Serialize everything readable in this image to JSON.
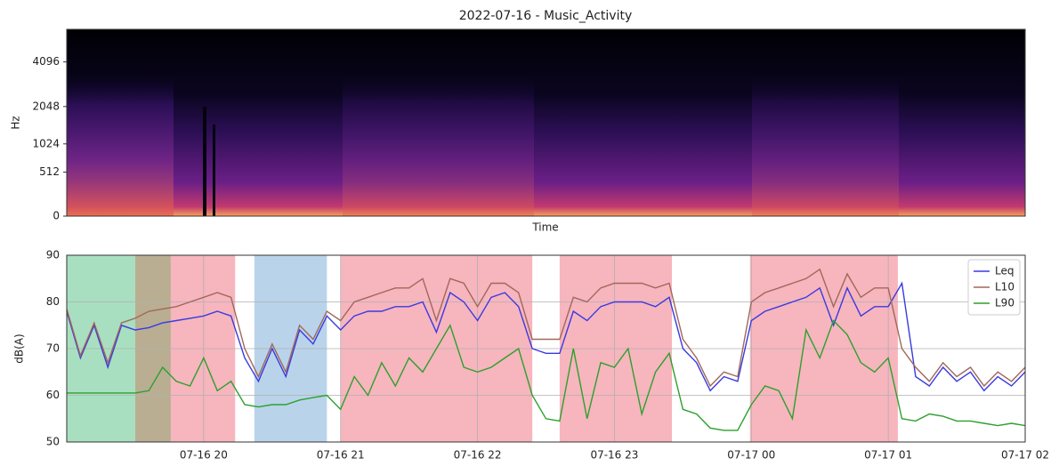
{
  "chart_data": [
    {
      "type": "spectrogram",
      "title": "2022-07-16 - Music_Activity",
      "ylabel": "Hz",
      "xlabel": "Time",
      "yscale": "mel",
      "ylim": [
        0,
        6500
      ],
      "yticks": [
        0,
        512,
        1024,
        2048,
        4096
      ]
    },
    {
      "type": "line",
      "ylabel": "dB(A)",
      "xlim": [
        19,
        26
      ],
      "xticks": [
        {
          "value": 20,
          "label": "07-16 20"
        },
        {
          "value": 21,
          "label": "07-16 21"
        },
        {
          "value": 22,
          "label": "07-16 22"
        },
        {
          "value": 23,
          "label": "07-16 23"
        },
        {
          "value": 24,
          "label": "07-17 00"
        },
        {
          "value": 25,
          "label": "07-17 01"
        },
        {
          "value": 26,
          "label": "07-17 02"
        }
      ],
      "ylim": [
        50,
        90
      ],
      "yticks": [
        50,
        60,
        70,
        80,
        90
      ],
      "grid": true,
      "legend": "upper right",
      "spans": [
        {
          "start": 19.0,
          "end": 19.5,
          "color": "#a8dfc0"
        },
        {
          "start": 19.5,
          "end": 19.76,
          "color": "#b9ae92"
        },
        {
          "start": 19.76,
          "end": 20.23,
          "color": "#f7b5be"
        },
        {
          "start": 20.37,
          "end": 20.9,
          "color": "#b9d4ea"
        },
        {
          "start": 21.0,
          "end": 22.4,
          "color": "#f7b5be"
        },
        {
          "start": 22.6,
          "end": 23.42,
          "color": "#f7b5be"
        },
        {
          "start": 23.99,
          "end": 25.07,
          "color": "#f7b5be"
        }
      ],
      "x": [
        19.0,
        19.1,
        19.2,
        19.3,
        19.4,
        19.5,
        19.6,
        19.7,
        19.8,
        19.9,
        20.0,
        20.1,
        20.2,
        20.3,
        20.4,
        20.5,
        20.6,
        20.7,
        20.8,
        20.9,
        21.0,
        21.1,
        21.2,
        21.3,
        21.4,
        21.5,
        21.6,
        21.7,
        21.8,
        21.9,
        22.0,
        22.1,
        22.2,
        22.3,
        22.4,
        22.5,
        22.6,
        22.7,
        22.8,
        22.9,
        23.0,
        23.1,
        23.2,
        23.3,
        23.4,
        23.5,
        23.6,
        23.7,
        23.8,
        23.9,
        24.0,
        24.1,
        24.2,
        24.3,
        24.4,
        24.5,
        24.6,
        24.7,
        24.8,
        24.9,
        25.0,
        25.1,
        25.2,
        25.3,
        25.4,
        25.5,
        25.6,
        25.7,
        25.8,
        25.9,
        26.0
      ],
      "series": [
        {
          "name": "Leq",
          "color": "#3a3adf",
          "values": [
            78,
            68,
            75,
            66,
            75,
            74,
            74.5,
            75.5,
            76,
            76.5,
            77,
            78,
            77,
            68,
            63,
            70,
            64,
            74,
            71,
            77,
            74,
            77,
            78,
            78,
            79,
            79,
            80,
            73.5,
            82,
            80,
            76,
            81,
            82,
            79,
            70,
            69,
            69,
            78,
            76,
            79,
            80,
            80,
            80,
            79,
            81,
            70,
            67,
            61,
            64,
            63,
            76,
            78,
            79,
            80,
            81,
            83,
            75,
            83,
            77,
            79,
            79,
            84,
            64,
            62,
            66,
            63,
            65,
            61,
            64,
            62,
            65
          ]
        },
        {
          "name": "L10",
          "color": "#a0685a",
          "values": [
            78.5,
            68.5,
            75.5,
            67,
            75.5,
            76.5,
            78,
            78.5,
            79,
            80,
            81,
            82,
            81,
            70,
            64,
            71,
            65,
            75,
            72,
            78,
            76,
            80,
            81,
            82,
            83,
            83,
            85,
            76,
            85,
            84,
            79,
            84,
            84,
            82,
            72,
            72,
            72,
            81,
            80,
            83,
            84,
            84,
            84,
            83,
            84,
            72,
            68,
            62,
            65,
            64,
            80,
            82,
            83,
            84,
            85,
            87,
            79,
            86,
            81,
            83,
            83,
            70,
            66,
            63,
            67,
            64,
            66,
            62,
            65,
            63,
            66
          ]
        },
        {
          "name": "L90",
          "color": "#2ca02c",
          "values": [
            60.5,
            60.5,
            60.5,
            60.5,
            60.5,
            60.5,
            61,
            66,
            63,
            62,
            68,
            61,
            63,
            58,
            57.5,
            58,
            58,
            59,
            59.5,
            60,
            57,
            64,
            60,
            67,
            62,
            68,
            65,
            70,
            75,
            66,
            65,
            66,
            68,
            70,
            60,
            55,
            54.5,
            70,
            55,
            67,
            66,
            70,
            56,
            65,
            69,
            57,
            56,
            53,
            52.5,
            52.5,
            58,
            62,
            61,
            55,
            74,
            68,
            76,
            73,
            67,
            65,
            68,
            55,
            54.5,
            56,
            55.5,
            54.5,
            54.5,
            54,
            53.5,
            54,
            53.5
          ]
        }
      ]
    }
  ]
}
